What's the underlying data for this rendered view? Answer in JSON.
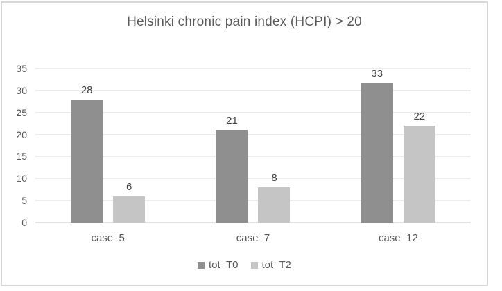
{
  "chart_data": {
    "type": "bar",
    "title": "Helsinki chronic pain index (HCPI) > 20",
    "categories": [
      "case_5",
      "case_7",
      "case_12"
    ],
    "series": [
      {
        "name": "tot_T0",
        "color": "#8f8f8f",
        "values": [
          28,
          21,
          33
        ]
      },
      {
        "name": "tot_T2",
        "color": "#c5c5c5",
        "values": [
          6,
          8,
          22
        ]
      }
    ],
    "xlabel": "",
    "ylabel": "",
    "y_axis": {
      "min": 0,
      "max": 35,
      "tick_interval": 5,
      "ticks": [
        0,
        5,
        10,
        15,
        20,
        25,
        30,
        35
      ]
    },
    "grid": "on",
    "data_labels": "on",
    "legend_position": "bottom"
  },
  "colors": {
    "series_dark": "#8f8f8f",
    "series_light": "#c5c5c5",
    "title_text": "#595959",
    "axis_text": "#595959",
    "data_label_text": "#444444",
    "gridline": "#d9d9d9",
    "baseline": "#c9c9c9",
    "frame_border": "#d7d7d7",
    "background": "#ffffff"
  }
}
